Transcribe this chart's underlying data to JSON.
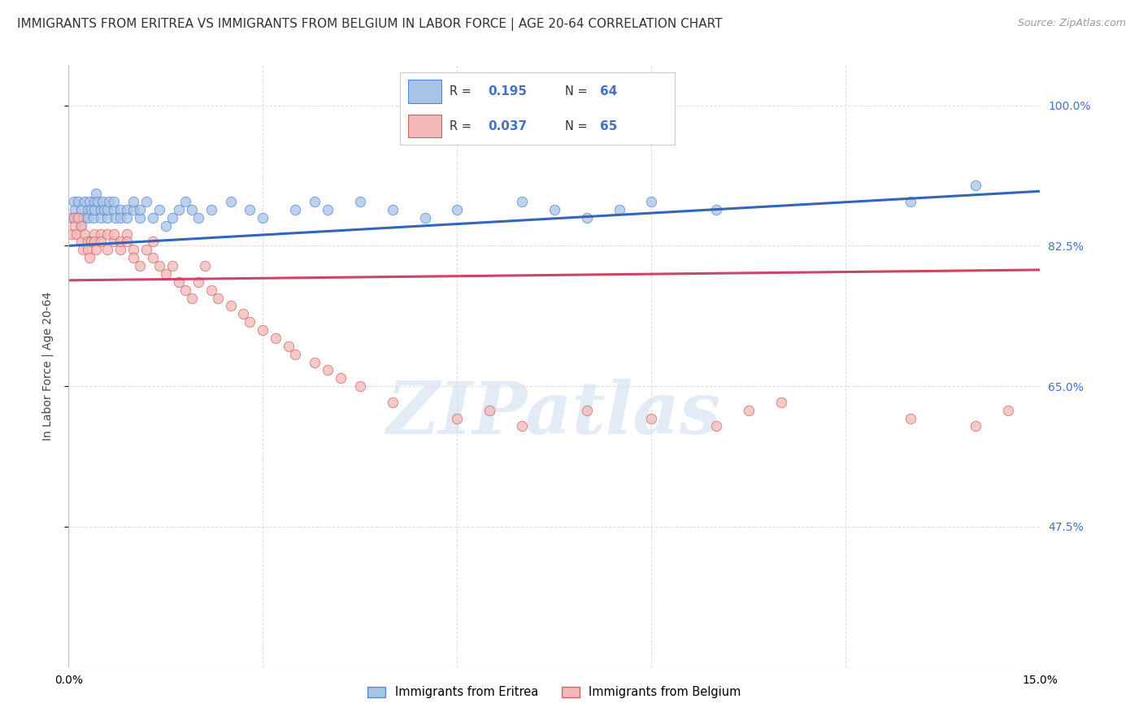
{
  "title": "IMMIGRANTS FROM ERITREA VS IMMIGRANTS FROM BELGIUM IN LABOR FORCE | AGE 20-64 CORRELATION CHART",
  "source": "Source: ZipAtlas.com",
  "ylabel": "In Labor Force | Age 20-64",
  "x_min": 0.0,
  "x_max": 0.15,
  "y_min": 0.3,
  "y_max": 1.05,
  "yticks": [
    0.475,
    0.65,
    0.825,
    1.0
  ],
  "ytick_labels": [
    "47.5%",
    "65.0%",
    "82.5%",
    "100.0%"
  ],
  "xticks": [
    0.0,
    0.03,
    0.06,
    0.09,
    0.12,
    0.15
  ],
  "xtick_labels": [
    "0.0%",
    "",
    "",
    "",
    "",
    "15.0%"
  ],
  "series": [
    {
      "name": "Immigrants from Eritrea",
      "R": "0.195",
      "N": "64",
      "color": "#aac4e8",
      "edge_color": "#5588cc",
      "trend_color": "#3366bb",
      "x": [
        0.0005,
        0.0008,
        0.001,
        0.0012,
        0.0015,
        0.0018,
        0.002,
        0.0022,
        0.0025,
        0.003,
        0.003,
        0.0032,
        0.0035,
        0.0038,
        0.004,
        0.004,
        0.0042,
        0.0045,
        0.005,
        0.005,
        0.0052,
        0.0055,
        0.006,
        0.006,
        0.0062,
        0.007,
        0.007,
        0.0072,
        0.008,
        0.008,
        0.009,
        0.009,
        0.01,
        0.01,
        0.011,
        0.011,
        0.012,
        0.013,
        0.014,
        0.015,
        0.016,
        0.017,
        0.018,
        0.019,
        0.02,
        0.022,
        0.025,
        0.028,
        0.03,
        0.035,
        0.038,
        0.04,
        0.045,
        0.05,
        0.055,
        0.06,
        0.07,
        0.075,
        0.08,
        0.085,
        0.09,
        0.1,
        0.13,
        0.14
      ],
      "y": [
        0.86,
        0.88,
        0.87,
        0.86,
        0.88,
        0.85,
        0.87,
        0.86,
        0.88,
        0.87,
        0.86,
        0.88,
        0.87,
        0.86,
        0.88,
        0.87,
        0.89,
        0.88,
        0.87,
        0.86,
        0.88,
        0.87,
        0.86,
        0.87,
        0.88,
        0.87,
        0.88,
        0.86,
        0.87,
        0.86,
        0.87,
        0.86,
        0.87,
        0.88,
        0.86,
        0.87,
        0.88,
        0.86,
        0.87,
        0.85,
        0.86,
        0.87,
        0.88,
        0.87,
        0.86,
        0.87,
        0.88,
        0.87,
        0.86,
        0.87,
        0.88,
        0.87,
        0.88,
        0.87,
        0.86,
        0.87,
        0.88,
        0.87,
        0.86,
        0.87,
        0.88,
        0.87,
        0.88,
        0.9
      ],
      "trend_x": [
        0.0,
        0.15
      ],
      "trend_y": [
        0.825,
        0.893
      ]
    },
    {
      "name": "Immigrants from Belgium",
      "R": "0.037",
      "N": "65",
      "color": "#f4b8b8",
      "edge_color": "#cc6666",
      "trend_color": "#cc4466",
      "x": [
        0.0005,
        0.0008,
        0.001,
        0.0012,
        0.0015,
        0.002,
        0.002,
        0.0022,
        0.0025,
        0.003,
        0.003,
        0.0032,
        0.0035,
        0.004,
        0.004,
        0.0042,
        0.005,
        0.005,
        0.006,
        0.006,
        0.007,
        0.007,
        0.008,
        0.008,
        0.009,
        0.009,
        0.01,
        0.01,
        0.011,
        0.012,
        0.013,
        0.013,
        0.014,
        0.015,
        0.016,
        0.017,
        0.018,
        0.019,
        0.02,
        0.021,
        0.022,
        0.023,
        0.025,
        0.027,
        0.028,
        0.03,
        0.032,
        0.034,
        0.035,
        0.038,
        0.04,
        0.042,
        0.045,
        0.05,
        0.06,
        0.065,
        0.07,
        0.08,
        0.09,
        0.1,
        0.105,
        0.11,
        0.13,
        0.14,
        0.145
      ],
      "y": [
        0.84,
        0.86,
        0.85,
        0.84,
        0.86,
        0.85,
        0.83,
        0.82,
        0.84,
        0.83,
        0.82,
        0.81,
        0.83,
        0.84,
        0.83,
        0.82,
        0.84,
        0.83,
        0.82,
        0.84,
        0.83,
        0.84,
        0.82,
        0.83,
        0.84,
        0.83,
        0.82,
        0.81,
        0.8,
        0.82,
        0.83,
        0.81,
        0.8,
        0.79,
        0.8,
        0.78,
        0.77,
        0.76,
        0.78,
        0.8,
        0.77,
        0.76,
        0.75,
        0.74,
        0.73,
        0.72,
        0.71,
        0.7,
        0.69,
        0.68,
        0.67,
        0.66,
        0.65,
        0.63,
        0.61,
        0.62,
        0.6,
        0.62,
        0.61,
        0.6,
        0.62,
        0.63,
        0.61,
        0.6,
        0.62
      ],
      "trend_x": [
        0.0,
        0.15
      ],
      "trend_y": [
        0.782,
        0.795
      ]
    }
  ],
  "watermark_text": "ZIPatlas",
  "background_color": "#ffffff",
  "grid_color": "#dddddd",
  "title_fontsize": 11,
  "label_fontsize": 10,
  "tick_fontsize": 10,
  "right_tick_color": "#4472c4"
}
